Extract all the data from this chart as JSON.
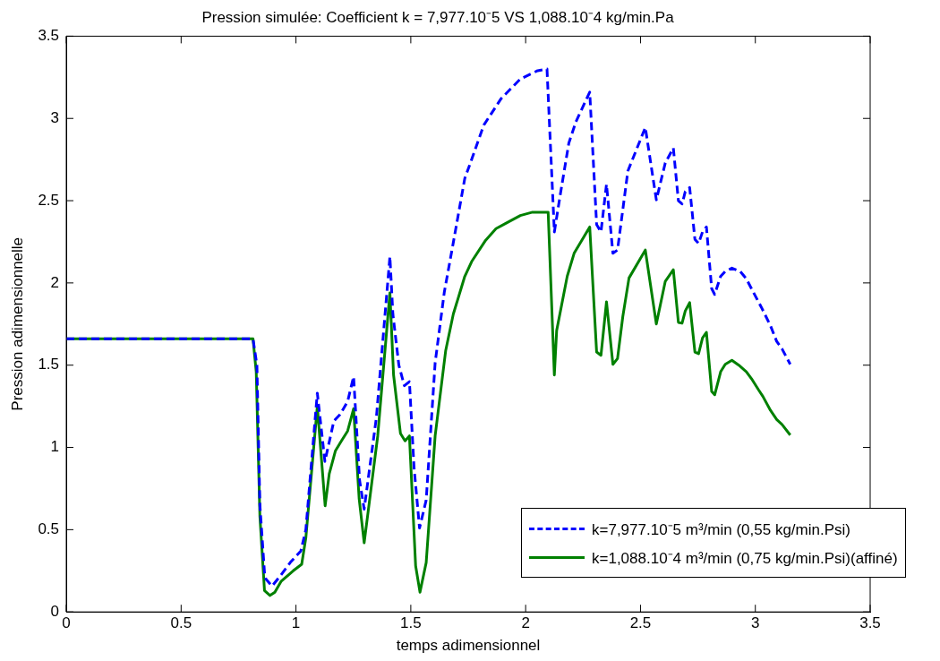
{
  "chart_data": {
    "type": "line",
    "title": "Pression simulée: Coefficient k = 7,977.10⁻5 VS 1,088.10⁻4 kg/min.Pa",
    "xlabel": "temps adimensionnel",
    "ylabel": "Pression adimensionnelle",
    "xlim": [
      0,
      3.5
    ],
    "xticks": [
      0,
      0.5,
      1,
      1.5,
      2,
      2.5,
      3,
      3.5
    ],
    "ylim": [
      0,
      3.5
    ],
    "yticks": [
      0,
      0.5,
      1,
      1.5,
      2,
      2.5,
      3,
      3.5
    ],
    "grid": false,
    "legend": "bottom right",
    "marker": "none",
    "series": [
      {
        "name": "k=7,977.10⁻5 m³/min (0,55 kg/min.Psi)",
        "color": "#0000ff",
        "line_style": "dashed",
        "x": [
          0,
          0.813,
          0.83,
          0.843,
          0.863,
          0.869,
          0.896,
          0.935,
          0.975,
          1.021,
          1.043,
          1.093,
          1.126,
          1.165,
          1.192,
          1.225,
          1.251,
          1.277,
          1.297,
          1.35,
          1.409,
          1.422,
          1.448,
          1.472,
          1.494,
          1.514,
          1.538,
          1.567,
          1.606,
          1.646,
          1.685,
          1.735,
          1.757,
          1.818,
          1.893,
          1.977,
          2.052,
          2.093,
          2.125,
          2.15,
          2.188,
          2.219,
          2.279,
          2.309,
          2.328,
          2.352,
          2.38,
          2.4,
          2.445,
          2.521,
          2.569,
          2.608,
          2.643,
          2.665,
          2.681,
          2.695,
          2.714,
          2.737,
          2.753,
          2.77,
          2.787,
          2.81,
          2.823,
          2.849,
          2.869,
          2.898,
          2.934,
          2.961,
          2.987,
          3.027,
          3.066,
          3.093,
          3.116,
          3.152
        ],
        "values": [
          1.66,
          1.66,
          1.5,
          0.65,
          0.24,
          0.2,
          0.157,
          0.225,
          0.3,
          0.37,
          0.5,
          1.33,
          0.915,
          1.16,
          1.2,
          1.28,
          1.43,
          0.8,
          0.625,
          1.18,
          2.16,
          1.81,
          1.5,
          1.375,
          1.4,
          0.88,
          0.51,
          0.68,
          1.515,
          1.945,
          2.245,
          2.635,
          2.72,
          2.96,
          3.12,
          3.24,
          3.29,
          3.3,
          2.31,
          2.53,
          2.85,
          2.98,
          3.16,
          2.355,
          2.31,
          2.6,
          2.18,
          2.2,
          2.68,
          2.945,
          2.505,
          2.73,
          2.82,
          2.5,
          2.48,
          2.555,
          2.58,
          2.265,
          2.24,
          2.31,
          2.34,
          1.965,
          1.93,
          2.04,
          2.07,
          2.09,
          2.07,
          2.025,
          1.955,
          1.85,
          1.74,
          1.645,
          1.6,
          1.505
        ]
      },
      {
        "name": "k=1,088.10⁻4 m³/min (0,75 kg/min.Psi)(affiné)",
        "color": "#008000",
        "line_style": "solid",
        "x": [
          0,
          0.813,
          0.827,
          0.843,
          0.863,
          0.887,
          0.908,
          0.935,
          0.988,
          1.025,
          1.043,
          1.093,
          1.127,
          1.145,
          1.172,
          1.198,
          1.225,
          1.251,
          1.275,
          1.297,
          1.356,
          1.409,
          1.425,
          1.455,
          1.475,
          1.494,
          1.521,
          1.54,
          1.567,
          1.606,
          1.652,
          1.685,
          1.735,
          1.765,
          1.826,
          1.871,
          1.917,
          1.977,
          2.03,
          2.098,
          2.125,
          2.135,
          2.181,
          2.211,
          2.279,
          2.309,
          2.328,
          2.352,
          2.38,
          2.4,
          2.423,
          2.45,
          2.521,
          2.569,
          2.608,
          2.643,
          2.665,
          2.681,
          2.695,
          2.714,
          2.737,
          2.753,
          2.77,
          2.787,
          2.81,
          2.823,
          2.849,
          2.869,
          2.898,
          2.928,
          2.961,
          2.987,
          3.014,
          3.033,
          3.066,
          3.093,
          3.116,
          3.152
        ],
        "values": [
          1.66,
          1.66,
          1.46,
          0.58,
          0.13,
          0.1,
          0.12,
          0.185,
          0.25,
          0.29,
          0.45,
          1.25,
          0.645,
          0.84,
          0.98,
          1.04,
          1.1,
          1.235,
          0.69,
          0.42,
          1.07,
          1.94,
          1.44,
          1.085,
          1.04,
          1.07,
          0.28,
          0.12,
          0.3,
          1.07,
          1.59,
          1.81,
          2.04,
          2.13,
          2.26,
          2.33,
          2.365,
          2.41,
          2.43,
          2.43,
          1.44,
          1.71,
          2.04,
          2.18,
          2.34,
          1.58,
          1.56,
          1.885,
          1.505,
          1.54,
          1.795,
          2.03,
          2.2,
          1.75,
          2.01,
          2.08,
          1.76,
          1.755,
          1.83,
          1.88,
          1.58,
          1.57,
          1.665,
          1.7,
          1.34,
          1.32,
          1.46,
          1.505,
          1.53,
          1.5,
          1.46,
          1.41,
          1.35,
          1.31,
          1.225,
          1.17,
          1.14,
          1.075
        ]
      }
    ]
  }
}
